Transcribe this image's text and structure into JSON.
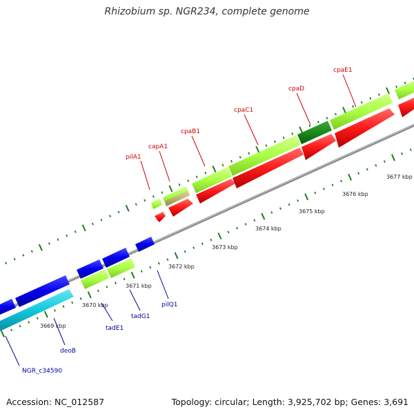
{
  "title": "Rhizobium sp. NGR234, complete genome",
  "footer": {
    "accession": "Accession: NC_012587",
    "summary": "Topology: circular; Length: 3,925,702 bp; Genes: 3,691"
  },
  "colors": {
    "forward_label": "#cc0000",
    "reverse_label": "#000099",
    "backbone": "#9a9a9a",
    "tick_dots": "#1a7a1a",
    "cds_forward": "#ff2222",
    "cds_reverse": "#0000ee",
    "cds_reverse_cyan": "#11c8dc",
    "gene_light_green": "#aaff44",
    "gene_dark_green": "#1a8a1a",
    "gene_khaki": "#bdb76b"
  },
  "kbp_ticks": [
    "3669 kbp",
    "3670 kbp",
    "3671 kbp",
    "3672 kbp",
    "3673 kbp",
    "3674 kbp",
    "3675 kbp",
    "3676 kbp",
    "3677 kbp"
  ],
  "forward_genes": [
    "pilA1",
    "capA1",
    "cpaB1",
    "cpaC1",
    "cpaD",
    "cpaE1"
  ],
  "reverse_genes": [
    "pilQ1",
    "tadG1",
    "tadE1",
    "deoB",
    "NGR_c34590"
  ]
}
